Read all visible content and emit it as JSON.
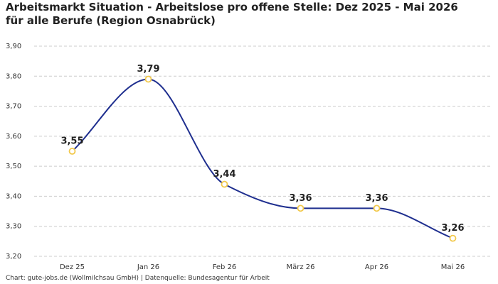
{
  "chart_data": {
    "type": "line",
    "title": "Arbeitsmarkt Situation - Arbeitslose pro offene Stelle: Dez 2025 - Mai 2026 für alle Berufe (Region Osnabrück)",
    "source": "Chart: gute-jobs.de (Wollmilchsau GmbH) | Datenquelle: Bundesagentur für Arbeit",
    "categories": [
      "Dez 25",
      "Jan 26",
      "Feb 26",
      "März 26",
      "Apr 26",
      "Mai 26"
    ],
    "values": [
      3.55,
      3.79,
      3.44,
      3.36,
      3.36,
      3.26
    ],
    "value_labels": [
      "3,55",
      "3,79",
      "3,44",
      "3,36",
      "3,36",
      "3,26"
    ],
    "color": "#1f2f8f",
    "marker_color": "#f2c94c",
    "ylim": [
      3.2,
      3.9
    ],
    "yticks": [
      {
        "value": 3.2,
        "label": "3,20"
      },
      {
        "value": 3.3,
        "label": "3,30"
      },
      {
        "value": 3.4,
        "label": "3,40"
      },
      {
        "value": 3.5,
        "label": "3,50"
      },
      {
        "value": 3.6,
        "label": "3,60"
      },
      {
        "value": 3.7,
        "label": "3,70"
      },
      {
        "value": 3.8,
        "label": "3,80"
      },
      {
        "value": 3.9,
        "label": "3,90"
      }
    ],
    "grid": true
  }
}
